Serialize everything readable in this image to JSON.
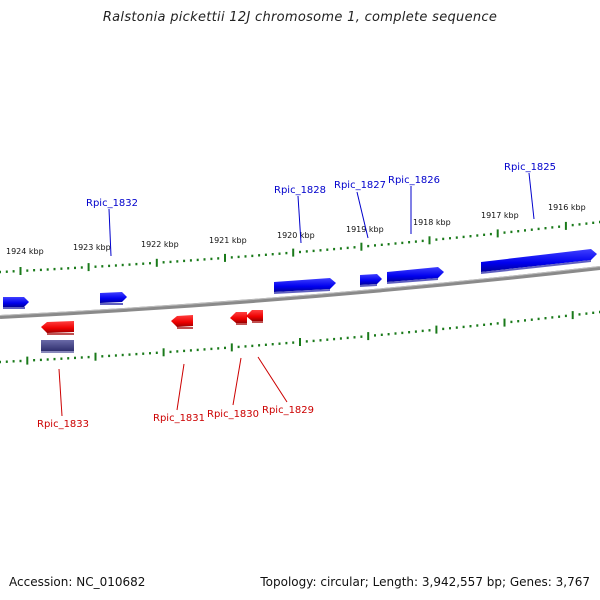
{
  "title": "Ralstonia pickettii 12J chromosome 1, complete sequence",
  "footer": {
    "accession": "Accession: NC_010682",
    "summary": "Topology: circular; Length: 3,942,557 bp; Genes: 3,767"
  },
  "colors": {
    "forward_gene": "#0000ee",
    "reverse_gene": "#ee0000",
    "other_gene": "#3f3f88",
    "tick": "#1a7a1a",
    "backbone": "#808080"
  },
  "ticks": [
    "1924 kbp",
    "1923 kbp",
    "1922 kbp",
    "1921 kbp",
    "1920 kbp",
    "1919 kbp",
    "1918 kbp",
    "1917 kbp",
    "1916 kbp"
  ],
  "forward_genes": [
    "Rpic_1832",
    "Rpic_1828",
    "Rpic_1827",
    "Rpic_1826",
    "Rpic_1825"
  ],
  "reverse_genes": [
    "Rpic_1833",
    "Rpic_1831",
    "Rpic_1830",
    "Rpic_1829"
  ]
}
